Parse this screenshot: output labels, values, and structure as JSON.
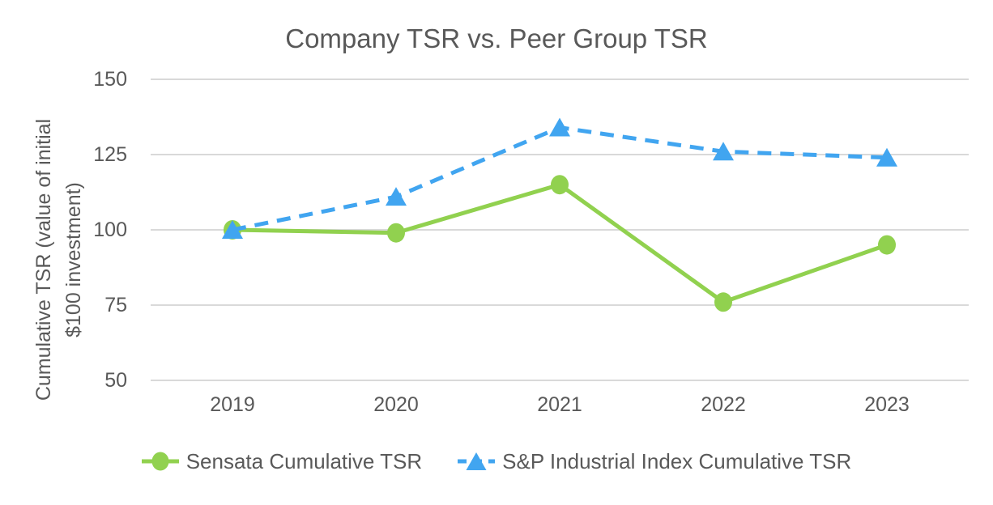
{
  "chart_data": {
    "type": "line",
    "title": "Company TSR vs. Peer Group TSR",
    "ylabel": "Cumulative TSR (value of initial $100 investment)",
    "ylabel_lines": [
      "Cumulative TSR (value of initial",
      "$100 investment)"
    ],
    "xlabel": "",
    "categories": [
      "2019",
      "2020",
      "2021",
      "2022",
      "2023"
    ],
    "series": [
      {
        "id": "sensata",
        "name": "Sensata Cumulative TSR",
        "values": [
          100,
          99,
          115,
          76,
          95
        ],
        "color": "#91D14F",
        "marker": "circle",
        "line_style": "solid"
      },
      {
        "id": "sp-industrial",
        "name": "S&P Industrial Index Cumulative TSR",
        "values": [
          100,
          111,
          134,
          126,
          124
        ],
        "color": "#41A5F0",
        "marker": "triangle",
        "line_style": "dashed"
      }
    ],
    "y_ticks": [
      50,
      75,
      100,
      125,
      150
    ],
    "ylim": [
      50,
      150
    ],
    "grid": true,
    "legend_position": "bottom",
    "colors": {
      "gridline": "#D9D9D9",
      "text": "#595959",
      "background": "#FFFFFF"
    }
  }
}
